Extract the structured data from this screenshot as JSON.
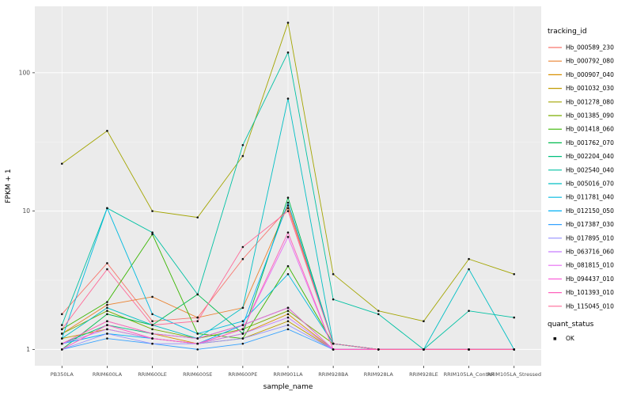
{
  "chart_data": {
    "type": "line",
    "title": "",
    "xlabel": "sample_name",
    "ylabel": "FPKM + 1",
    "yscale": "log10",
    "ylim": [
      1,
      300
    ],
    "yticks": [
      1,
      10,
      100
    ],
    "yticks_minor": [
      3.162,
      31.62
    ],
    "grid": true,
    "legend_position": "right",
    "categories": [
      "PB350LA",
      "RRIM600LA",
      "RRIM600LE",
      "RRIM600SE",
      "RRIM600PE",
      "RRIM901LA",
      "RRIM928BA",
      "RRIM928LA",
      "RRIM928LE",
      "RRIM105LA_Control",
      "RRIM105LA_Stressed"
    ],
    "series": [
      {
        "name": "Hb_000589_230",
        "color": "#F8766D",
        "values": [
          1.8,
          4.2,
          1.6,
          1.7,
          4.5,
          10.5,
          1.1,
          1.0,
          1.0,
          1.0,
          1.0
        ]
      },
      {
        "name": "Hb_000792_080",
        "color": "#EA8331",
        "values": [
          1.3,
          2.1,
          2.4,
          1.7,
          2.0,
          11.0,
          1.1,
          1.0,
          1.0,
          1.0,
          1.0
        ]
      },
      {
        "name": "Hb_000907_040",
        "color": "#D89000",
        "values": [
          1.1,
          1.6,
          1.3,
          1.1,
          1.3,
          1.8,
          1.0,
          1.0,
          1.0,
          1.0,
          1.0
        ]
      },
      {
        "name": "Hb_001032_030",
        "color": "#C09B00",
        "values": [
          1.2,
          1.4,
          1.2,
          1.1,
          1.2,
          1.6,
          1.0,
          1.0,
          1.0,
          1.0,
          1.0
        ]
      },
      {
        "name": "Hb_001278_080",
        "color": "#A3A500",
        "values": [
          22,
          38,
          10,
          9,
          25,
          230,
          3.5,
          1.9,
          1.6,
          4.5,
          3.5
        ]
      },
      {
        "name": "Hb_001385_090",
        "color": "#7CAE00",
        "values": [
          1.3,
          1.9,
          1.4,
          1.2,
          1.4,
          1.9,
          1.1,
          1.0,
          1.0,
          1.0,
          1.0
        ]
      },
      {
        "name": "Hb_001418_060",
        "color": "#39B600",
        "values": [
          1.4,
          2.2,
          6.8,
          1.3,
          1.2,
          4.0,
          1.1,
          1.0,
          1.0,
          1.0,
          1.0
        ]
      },
      {
        "name": "Hb_001762_070",
        "color": "#00BB4E",
        "values": [
          1.0,
          1.8,
          1.5,
          2.5,
          1.3,
          12.5,
          1.1,
          1.0,
          1.0,
          1.0,
          1.0
        ]
      },
      {
        "name": "Hb_002204_040",
        "color": "#00BF7D",
        "values": [
          1.1,
          1.5,
          1.3,
          1.2,
          1.5,
          2.0,
          1.0,
          1.0,
          1.0,
          1.0,
          1.0
        ]
      },
      {
        "name": "Hb_002540_040",
        "color": "#00C1A3",
        "values": [
          1.5,
          10.5,
          7.0,
          2.5,
          30,
          140,
          2.3,
          1.8,
          1.0,
          1.9,
          1.7
        ]
      },
      {
        "name": "Hb_005016_070",
        "color": "#00BFC4",
        "values": [
          1.2,
          2.0,
          1.5,
          1.2,
          2.0,
          65,
          1.1,
          1.0,
          1.0,
          3.8,
          1.0
        ]
      },
      {
        "name": "Hb_011781_040",
        "color": "#00BAE0",
        "values": [
          1.2,
          10.5,
          1.8,
          1.3,
          1.6,
          3.5,
          1.1,
          1.0,
          1.0,
          1.0,
          1.0
        ]
      },
      {
        "name": "Hb_012150_050",
        "color": "#00B0F6",
        "values": [
          1.1,
          1.3,
          1.2,
          1.1,
          1.5,
          11.5,
          1.1,
          1.0,
          1.0,
          1.0,
          1.0
        ]
      },
      {
        "name": "Hb_017387_030",
        "color": "#35A2FF",
        "values": [
          1.0,
          1.2,
          1.1,
          1.0,
          1.1,
          1.4,
          1.0,
          1.0,
          1.0,
          1.0,
          1.0
        ]
      },
      {
        "name": "Hb_017895_010",
        "color": "#9590FF",
        "values": [
          1.0,
          1.3,
          1.1,
          1.1,
          1.2,
          1.5,
          1.0,
          1.0,
          1.0,
          1.0,
          1.0
        ]
      },
      {
        "name": "Hb_063716_060",
        "color": "#C77CFF",
        "values": [
          1.1,
          1.4,
          1.2,
          1.1,
          1.3,
          1.7,
          1.0,
          1.0,
          1.0,
          1.0,
          1.0
        ]
      },
      {
        "name": "Hb_081815_010",
        "color": "#E76BF3",
        "values": [
          1.0,
          1.5,
          1.2,
          1.1,
          1.4,
          6.5,
          1.0,
          1.0,
          1.0,
          1.0,
          1.0
        ]
      },
      {
        "name": "Hb_094437_010",
        "color": "#FA62DB",
        "values": [
          1.1,
          1.6,
          1.3,
          1.2,
          1.5,
          2.0,
          1.0,
          1.0,
          1.0,
          1.0,
          1.0
        ]
      },
      {
        "name": "Hb_101393_010",
        "color": "#FF62BC",
        "values": [
          1.0,
          1.5,
          1.2,
          1.1,
          1.4,
          7.0,
          1.0,
          1.0,
          1.0,
          1.0,
          1.0
        ]
      },
      {
        "name": "Hb_115045_010",
        "color": "#FF6A98",
        "values": [
          1.4,
          3.8,
          1.5,
          1.6,
          5.5,
          10.0,
          1.1,
          1.0,
          1.0,
          1.0,
          1.0
        ]
      }
    ],
    "legend": {
      "color_legend_title": "tracking_id",
      "shape_legend_title": "quant_status",
      "shape_items": [
        {
          "label": "OK"
        }
      ]
    },
    "theme": {
      "panel_bg": "#EBEBEB",
      "grid_major": "#FFFFFF",
      "grid_minor": "#F5F5F5",
      "point_color": "#111111",
      "tick_label_color": "#4D4D4D",
      "axis_title_color": "#000000",
      "tick_mark_color": "#333333"
    }
  }
}
